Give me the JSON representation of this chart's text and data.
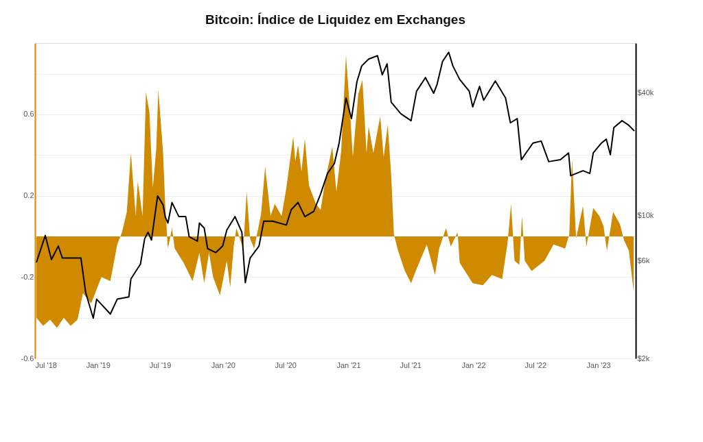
{
  "chart_data": {
    "type": "area",
    "title": "Bitcoin: Índice de Liquidez em Exchanges",
    "xlim": [
      "2018-07-01",
      "2023-04-20"
    ],
    "xticks": [
      {
        "value": "2018-07-01",
        "label": "Jul '18"
      },
      {
        "value": "2019-01-01",
        "label": "Jan '19"
      },
      {
        "value": "2019-07-01",
        "label": "Jul '19"
      },
      {
        "value": "2020-01-01",
        "label": "Jan '20"
      },
      {
        "value": "2020-07-01",
        "label": "Jul '20"
      },
      {
        "value": "2021-01-01",
        "label": "Jan '21"
      },
      {
        "value": "2021-07-01",
        "label": "Jul '21"
      },
      {
        "value": "2022-01-01",
        "label": "Jan '22"
      },
      {
        "value": "2022-07-01",
        "label": "Jul '22"
      },
      {
        "value": "2023-01-01",
        "label": "Jan '23"
      }
    ],
    "ylim": [
      -0.6,
      0.95
    ],
    "yticks": [
      -0.6,
      {
        "value": -0.4,
        "label": null
      },
      -0.2,
      {
        "value": 0,
        "label": null
      },
      0.2,
      {
        "value": 0.4,
        "label": null
      },
      0.6,
      {
        "value": 0.8,
        "label": null
      }
    ],
    "y2lim": [
      2000,
      70000
    ],
    "y2ticks": [
      {
        "value": 2000,
        "label": "$2k"
      },
      {
        "value": 6000,
        "label": "$6k"
      },
      {
        "value": 10000,
        "label": "$10k"
      },
      {
        "value": 40000,
        "label": "$40k"
      }
    ],
    "log": "y2",
    "grid": "y",
    "series": [
      {
        "color": "#d08a00",
        "x": [
          "2018-07-05",
          "2018-07-25",
          "2018-08-14",
          "2018-09-03",
          "2018-09-23",
          "2018-10-13",
          "2018-11-02",
          "2018-11-18",
          "2018-12-12",
          "2019-01-11",
          "2019-02-06",
          "2019-02-26",
          "2019-03-12",
          "2019-03-26",
          "2019-04-07",
          "2019-04-21",
          "2019-04-27",
          "2019-05-11",
          "2019-05-21",
          "2019-05-31",
          "2019-06-10",
          "2019-06-20",
          "2019-06-26",
          "2019-07-10",
          "2019-07-16",
          "2019-07-24",
          "2019-08-05",
          "2019-08-13",
          "2019-09-08",
          "2019-10-04",
          "2019-10-24",
          "2019-11-07",
          "2019-11-21",
          "2019-12-03",
          "2019-12-23",
          "2020-01-12",
          "2020-01-22",
          "2020-02-01",
          "2020-02-09",
          "2020-02-29",
          "2020-03-10",
          "2020-03-20",
          "2020-04-01",
          "2020-04-21",
          "2020-05-03",
          "2020-05-19",
          "2020-05-31",
          "2020-06-20",
          "2020-07-04",
          "2020-07-24",
          "2020-07-30",
          "2020-08-07",
          "2020-08-17",
          "2020-08-27",
          "2020-09-08",
          "2020-09-28",
          "2020-10-12",
          "2020-10-26",
          "2020-11-15",
          "2020-11-27",
          "2020-12-11",
          "2020-12-25",
          "2021-01-06",
          "2021-01-14",
          "2021-01-30",
          "2021-02-11",
          "2021-02-23",
          "2021-03-01",
          "2021-03-15",
          "2021-04-04",
          "2021-04-14",
          "2021-04-26",
          "2021-05-06",
          "2021-05-14",
          "2021-05-26",
          "2021-06-15",
          "2021-07-03",
          "2021-07-19",
          "2021-08-18",
          "2021-09-11",
          "2021-09-23",
          "2021-10-13",
          "2021-10-27",
          "2021-11-16",
          "2021-11-22",
          "2021-12-30",
          "2022-01-29",
          "2022-02-24",
          "2022-03-26",
          "2022-04-11",
          "2022-04-21",
          "2022-05-01",
          "2022-05-15",
          "2022-05-23",
          "2022-05-31",
          "2022-06-20",
          "2022-07-28",
          "2022-08-23",
          "2022-09-26",
          "2022-10-08",
          "2022-10-16",
          "2022-10-28",
          "2022-11-17",
          "2022-11-27",
          "2022-12-17",
          "2023-01-04",
          "2023-01-16",
          "2023-01-26",
          "2023-02-13",
          "2023-03-05",
          "2023-03-17",
          "2023-03-31",
          "2023-04-14"
        ],
        "values": [
          -0.4,
          -0.44,
          -0.41,
          -0.45,
          -0.4,
          -0.44,
          -0.41,
          -0.28,
          -0.33,
          -0.2,
          -0.22,
          -0.04,
          0.02,
          0.12,
          0.41,
          0.1,
          0.27,
          0.1,
          0.71,
          0.61,
          0.24,
          0.43,
          0.72,
          0.41,
          0.16,
          -0.06,
          0.04,
          -0.06,
          -0.13,
          -0.22,
          -0.08,
          -0.23,
          -0.08,
          -0.2,
          -0.29,
          -0.12,
          -0.25,
          -0.05,
          0.04,
          -0.06,
          0.22,
          -0.01,
          -0.06,
          0.11,
          0.34,
          0.1,
          0.16,
          0.1,
          0.24,
          0.49,
          0.37,
          0.45,
          0.32,
          0.48,
          0.25,
          0.16,
          0.13,
          0.28,
          0.44,
          0.22,
          0.42,
          0.89,
          0.61,
          0.39,
          0.7,
          0.77,
          0.41,
          0.54,
          0.41,
          0.59,
          0.39,
          0.55,
          0.3,
          0.01,
          -0.07,
          -0.17,
          -0.23,
          -0.16,
          -0.04,
          -0.19,
          -0.06,
          0.04,
          -0.05,
          0.02,
          -0.13,
          -0.23,
          -0.24,
          -0.19,
          -0.21,
          -0.03,
          0.16,
          -0.12,
          -0.14,
          0.1,
          -0.12,
          -0.17,
          -0.12,
          -0.04,
          -0.06,
          0.01,
          0.38,
          -0.01,
          0.15,
          -0.05,
          0.14,
          0.1,
          0.05,
          -0.07,
          0.12,
          0.06,
          -0.02,
          -0.07,
          -0.27
        ]
      },
      {
        "type": "line",
        "axis": "y2",
        "color": "#000000",
        "x": [
          "2018-07-05",
          "2018-07-31",
          "2018-08-18",
          "2018-09-07",
          "2018-09-19",
          "2018-11-12",
          "2018-11-26",
          "2018-12-18",
          "2018-12-28",
          "2019-02-06",
          "2019-02-26",
          "2019-04-01",
          "2019-04-07",
          "2019-05-05",
          "2019-05-17",
          "2019-05-27",
          "2019-06-06",
          "2019-06-24",
          "2019-07-10",
          "2019-07-16",
          "2019-07-24",
          "2019-08-05",
          "2019-08-25",
          "2019-09-14",
          "2019-09-24",
          "2019-10-18",
          "2019-10-24",
          "2019-11-07",
          "2019-11-17",
          "2019-12-11",
          "2019-12-31",
          "2020-01-12",
          "2020-02-05",
          "2020-02-25",
          "2020-03-06",
          "2020-03-20",
          "2020-04-15",
          "2020-04-29",
          "2020-05-25",
          "2020-07-04",
          "2020-07-18",
          "2020-08-07",
          "2020-08-27",
          "2020-09-22",
          "2020-10-12",
          "2020-11-01",
          "2020-11-21",
          "2020-12-05",
          "2020-12-25",
          "2021-01-10",
          "2021-01-26",
          "2021-02-09",
          "2021-03-01",
          "2021-03-27",
          "2021-04-10",
          "2021-04-24",
          "2021-05-06",
          "2021-06-03",
          "2021-07-03",
          "2021-07-19",
          "2021-08-14",
          "2021-09-07",
          "2021-09-17",
          "2021-10-03",
          "2021-10-21",
          "2021-11-02",
          "2021-11-22",
          "2021-12-20",
          "2021-12-30",
          "2022-01-19",
          "2022-01-31",
          "2022-03-06",
          "2022-04-05",
          "2022-04-19",
          "2022-05-09",
          "2022-05-21",
          "2022-06-24",
          "2022-07-18",
          "2022-08-09",
          "2022-09-12",
          "2022-10-06",
          "2022-10-12",
          "2022-11-17",
          "2022-12-07",
          "2022-12-17",
          "2023-01-10",
          "2023-01-24",
          "2023-02-05",
          "2023-02-15",
          "2023-03-11",
          "2023-03-31",
          "2023-04-16"
        ],
        "values": [
          5900,
          8000,
          6100,
          7100,
          6200,
          6200,
          4200,
          3150,
          3900,
          3300,
          3900,
          4000,
          4900,
          5800,
          7700,
          8300,
          7600,
          12500,
          11300,
          9900,
          9200,
          11600,
          9900,
          9900,
          7900,
          7500,
          9200,
          8700,
          6900,
          6600,
          7100,
          8500,
          9900,
          8300,
          4700,
          6200,
          7100,
          9400,
          9400,
          9000,
          10700,
          11600,
          9900,
          10500,
          12800,
          16100,
          18000,
          22700,
          37700,
          29900,
          45400,
          54200,
          58500,
          60800,
          49000,
          55400,
          36000,
          31600,
          29200,
          40700,
          47500,
          39800,
          44000,
          57000,
          63200,
          54200,
          46500,
          40700,
          34100,
          43000,
          36800,
          45700,
          37700,
          28500,
          29900,
          18800,
          22700,
          23200,
          18400,
          18800,
          20300,
          15700,
          16600,
          16100,
          20300,
          22700,
          23700,
          19900,
          27000,
          29200,
          27700,
          26000
        ]
      }
    ]
  }
}
